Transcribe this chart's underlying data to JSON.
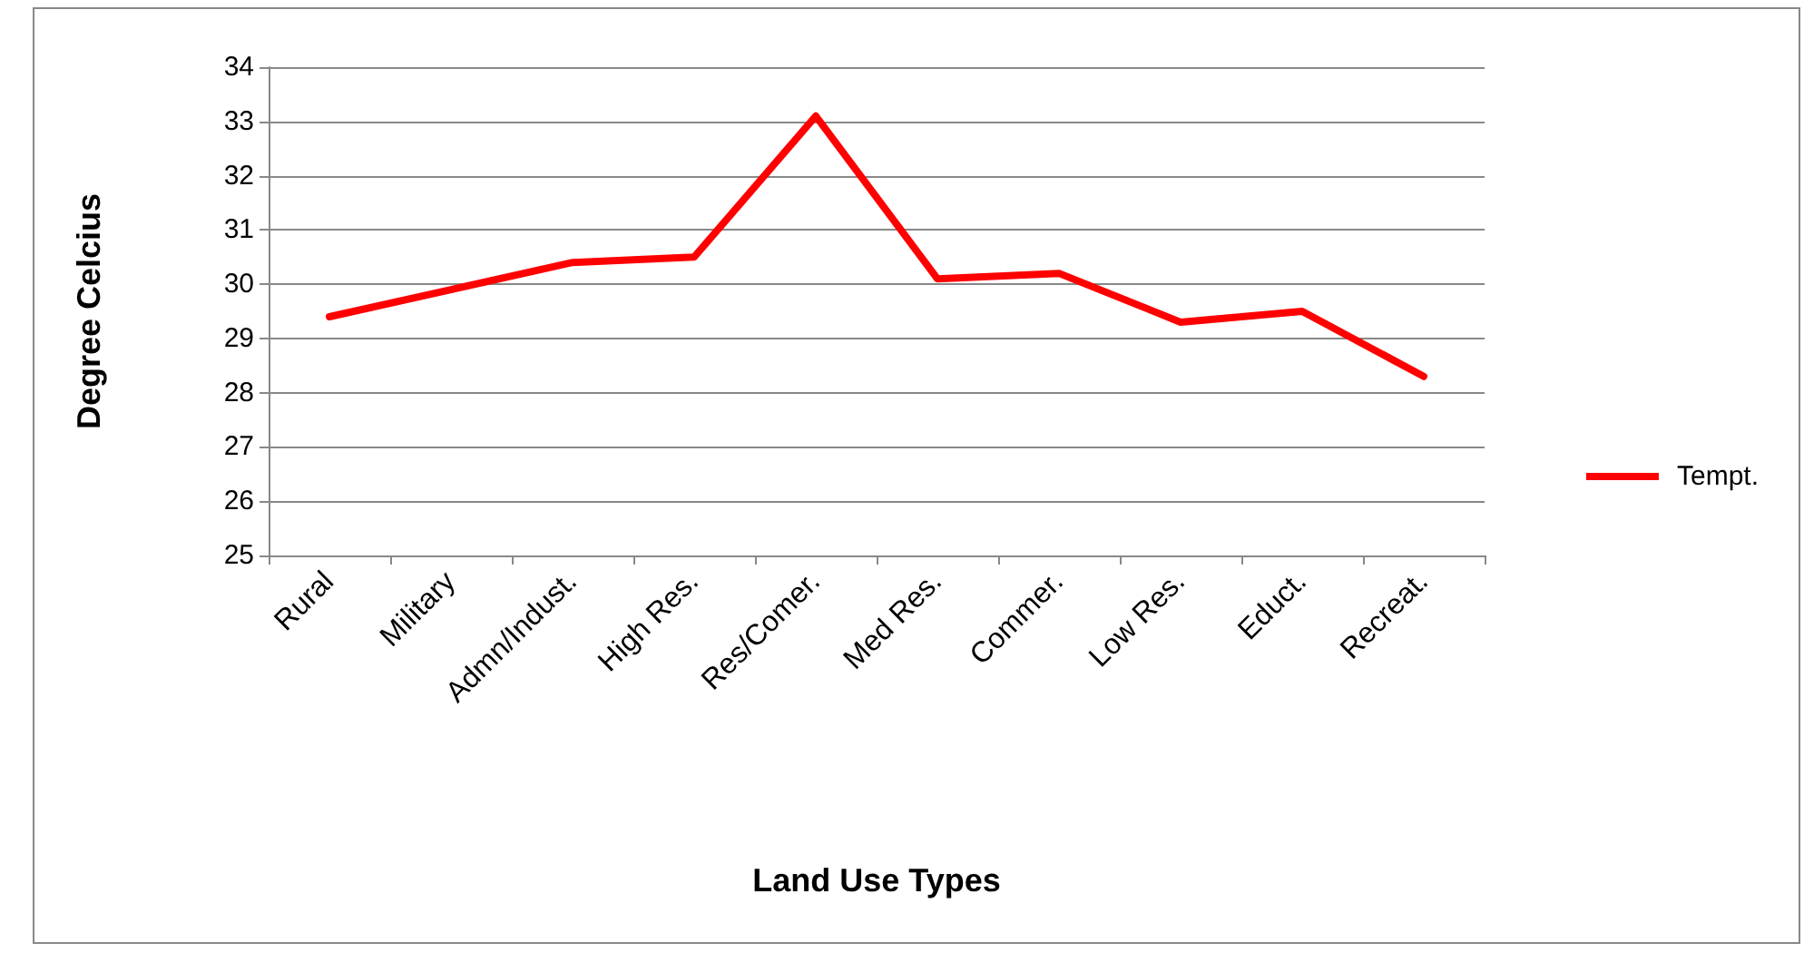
{
  "chart_data": {
    "type": "line",
    "xlabel": "Land Use Types",
    "ylabel": "Degree Celcius",
    "categories": [
      "Rural",
      "Military",
      "Admn/Indust.",
      "High Res.",
      "Res/Comer.",
      "Med Res.",
      "Commer.",
      "Low Res.",
      "Educt.",
      "Recreat."
    ],
    "series": [
      {
        "name": "Tempt.",
        "color": "#ff0000",
        "values": [
          29.4,
          29.9,
          30.4,
          30.5,
          33.1,
          30.1,
          30.2,
          29.3,
          29.5,
          28.3
        ]
      }
    ],
    "ylim": [
      25,
      34
    ],
    "yticks": [
      25,
      26,
      27,
      28,
      29,
      30,
      31,
      32,
      33,
      34
    ],
    "grid": "y",
    "legend": "right",
    "marker": "none",
    "line_style": "solid"
  }
}
